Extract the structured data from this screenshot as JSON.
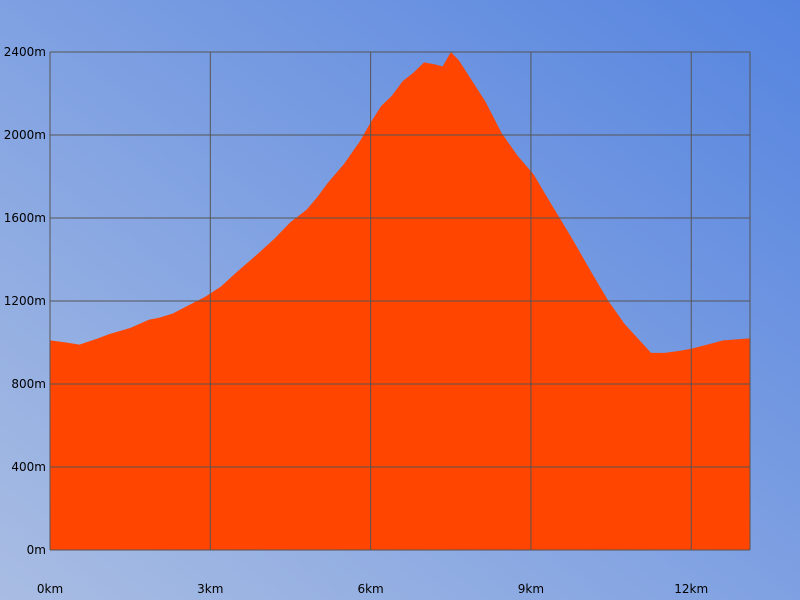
{
  "chart_data": {
    "type": "area",
    "title": "",
    "xlabel": "",
    "ylabel": "",
    "x_ticks": [
      "0km",
      "3km",
      "6km",
      "9km",
      "12km"
    ],
    "y_ticks": [
      "0m",
      "400m",
      "800m",
      "1200m",
      "1600m",
      "2000m",
      "2400m"
    ],
    "xlim": [
      0,
      13.1
    ],
    "ylim": [
      0,
      2400
    ],
    "grid": true,
    "colors": {
      "fill": "#ff4500",
      "grid": "#555555",
      "background_light": "#a9bde3",
      "background_dark": "#5584e0"
    },
    "series": [
      {
        "x": [
          0,
          0.3,
          0.55,
          0.9,
          1.1,
          1.5,
          1.85,
          2.05,
          2.3,
          2.6,
          2.9,
          3.2,
          3.5,
          3.9,
          4.2,
          4.5,
          4.8,
          5.0,
          5.2,
          5.5,
          5.8,
          6.0,
          6.2,
          6.4,
          6.6,
          6.8,
          7.0,
          7.2,
          7.35,
          7.5,
          7.65,
          7.85,
          8.15,
          8.45,
          8.75,
          9.05,
          9.35,
          9.75,
          10.15,
          10.45,
          10.75,
          11.0,
          11.25,
          11.5,
          11.8,
          12.0,
          12.3,
          12.6,
          13.1
        ],
        "y": [
          1010,
          1000,
          990,
          1020,
          1040,
          1070,
          1110,
          1120,
          1140,
          1180,
          1220,
          1270,
          1340,
          1430,
          1500,
          1580,
          1640,
          1700,
          1770,
          1860,
          1970,
          2060,
          2140,
          2190,
          2260,
          2300,
          2350,
          2340,
          2330,
          2400,
          2360,
          2280,
          2160,
          2010,
          1900,
          1810,
          1680,
          1510,
          1330,
          1200,
          1090,
          1020,
          950,
          950,
          960,
          970,
          990,
          1010,
          1020
        ]
      }
    ]
  }
}
